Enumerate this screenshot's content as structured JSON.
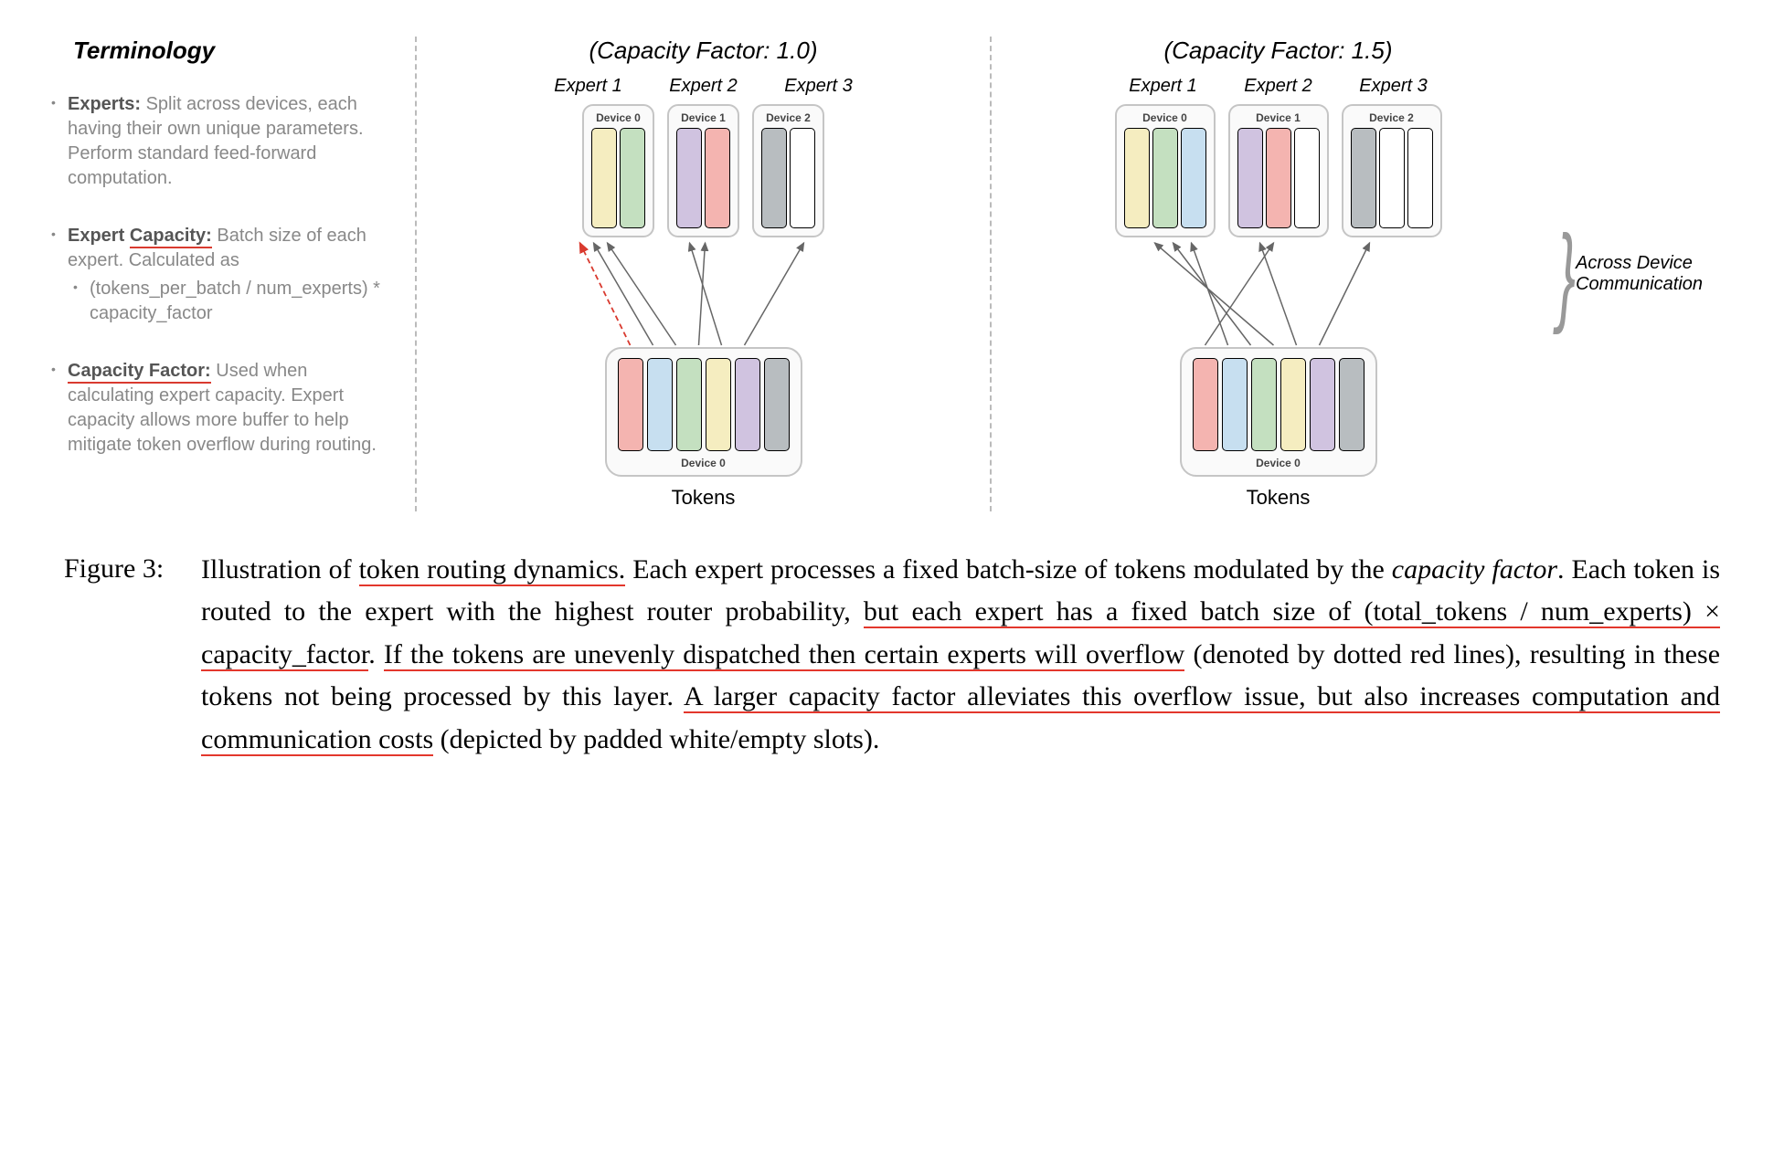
{
  "colors": {
    "red": "#f4b4b0",
    "blue": "#c7dff0",
    "yellow": "#f5edc0",
    "green": "#c4e0c0",
    "purple": "#d0c3e0",
    "grey": "#b8bdc0",
    "white": "#ffffff",
    "border": "#000000",
    "device_border": "#c5c5c5",
    "underline_red": "#e3372c"
  },
  "terminology": {
    "heading": "Terminology",
    "items": [
      {
        "term": "Experts:",
        "desc": "Split across devices, each having their own unique parameters. Perform standard feed-forward computation.",
        "underline": false
      },
      {
        "term": "Expert Capacity:",
        "desc": "Batch size of each expert. Calculated as",
        "sub": "(tokens_per_batch / num_experts) * capacity_factor",
        "underline": true
      },
      {
        "term": "Capacity Factor:",
        "desc": "Used when calculating expert capacity. Expert capacity allows more buffer to help mitigate token overflow during routing.",
        "underline": true
      }
    ]
  },
  "diagrams": [
    {
      "title": "(Capacity Factor: 1.0)",
      "experts": [
        {
          "label": "Expert 1",
          "device": "Device 0",
          "slots": [
            "yellow",
            "green"
          ]
        },
        {
          "label": "Expert 2",
          "device": "Device 1",
          "slots": [
            "purple",
            "red"
          ]
        },
        {
          "label": "Expert 3",
          "device": "Device 2",
          "slots": [
            "grey",
            "white"
          ]
        }
      ],
      "tokens": {
        "device": "Device 0",
        "slots": [
          "red",
          "blue",
          "green",
          "yellow",
          "purple",
          "grey"
        ],
        "label": "Tokens"
      },
      "has_dashed": true
    },
    {
      "title": "(Capacity Factor: 1.5)",
      "experts": [
        {
          "label": "Expert 1",
          "device": "Device 0",
          "slots": [
            "yellow",
            "green",
            "blue"
          ]
        },
        {
          "label": "Expert 2",
          "device": "Device 1",
          "slots": [
            "purple",
            "red",
            "white"
          ]
        },
        {
          "label": "Expert 3",
          "device": "Device 2",
          "slots": [
            "grey",
            "white",
            "white"
          ]
        }
      ],
      "tokens": {
        "device": "Device 0",
        "slots": [
          "red",
          "blue",
          "green",
          "yellow",
          "purple",
          "grey"
        ],
        "label": "Tokens"
      },
      "has_dashed": false
    }
  ],
  "annotation": "Across Device Communication",
  "caption": {
    "label": "Figure 3:",
    "text_parts": [
      {
        "t": "Illustration of ",
        "u": false
      },
      {
        "t": "token routing dynamics.",
        "u": true
      },
      {
        "t": " Each expert processes a fixed batch-size of tokens modulated by the ",
        "u": false
      },
      {
        "t": "capacity factor",
        "u": false,
        "i": true
      },
      {
        "t": ". Each token is routed to the expert with the highest router probability, ",
        "u": false
      },
      {
        "t": "but each expert has a fixed batch size of (total_tokens / num_experts) × capacity_factor",
        "u": true
      },
      {
        "t": ". ",
        "u": false
      },
      {
        "t": "If the tokens are unevenly dispatched then certain experts will overflow",
        "u": true
      },
      {
        "t": " (denoted by dotted red lines), resulting in these tokens not being processed by this layer. ",
        "u": false
      },
      {
        "t": "A larger capacity factor alleviates this overflow issue, but also increases computation and communication costs",
        "u": true
      },
      {
        "t": " (depicted by padded white/empty slots).",
        "u": false
      }
    ]
  }
}
